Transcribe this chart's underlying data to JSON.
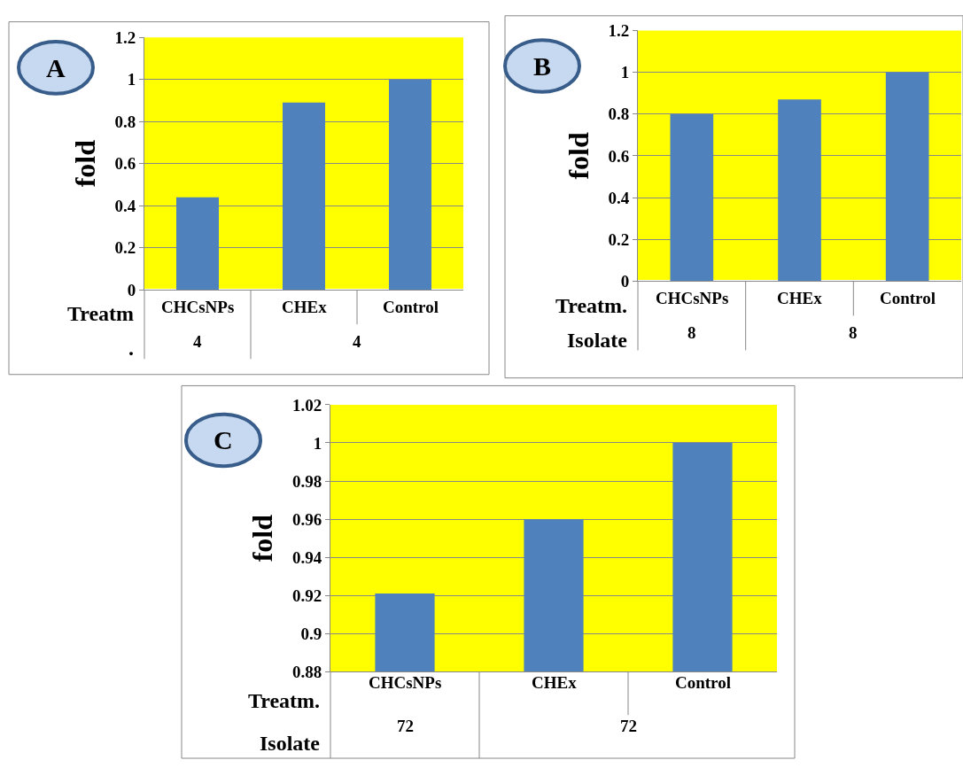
{
  "chart_data": [
    {
      "type": "bar",
      "title": "A",
      "ylabel": "fold",
      "categories": [
        "CHCsNPs",
        "CHEx",
        "Control"
      ],
      "values": [
        0.44,
        0.89,
        1
      ],
      "color": "#4f81bd",
      "ylim": [
        0,
        1.2
      ],
      "yticks": [
        0,
        0.2,
        0.4,
        0.6,
        0.8,
        1,
        1.2
      ],
      "grid": "y",
      "annotations": [
        "Treatm",
        ".",
        "4",
        "4"
      ]
    },
    {
      "type": "bar",
      "title": "B",
      "ylabel": "fold",
      "categories": [
        "CHCsNPs",
        "CHEx",
        "Control"
      ],
      "values": [
        0.8,
        0.87,
        1
      ],
      "color": "#4f81bd",
      "ylim": [
        0,
        1.2
      ],
      "yticks": [
        0,
        0.2,
        0.4,
        0.6,
        0.8,
        1,
        1.2
      ],
      "grid": "y",
      "annotations": [
        "Treatm.",
        "Isolate",
        "8",
        "8"
      ]
    },
    {
      "type": "bar",
      "title": "C",
      "ylabel": "fold",
      "categories": [
        "CHCsNPs",
        "CHEx",
        "Control"
      ],
      "values": [
        0.921,
        0.96,
        1
      ],
      "color": "#4f81bd",
      "ylim": [
        0.88,
        1.02
      ],
      "yticks": [
        0.88,
        0.9,
        0.92,
        0.94,
        0.96,
        0.98,
        1,
        1.02
      ],
      "grid": "y",
      "annotations": [
        "Treatm.",
        "Isolate",
        "72",
        "72"
      ]
    }
  ]
}
